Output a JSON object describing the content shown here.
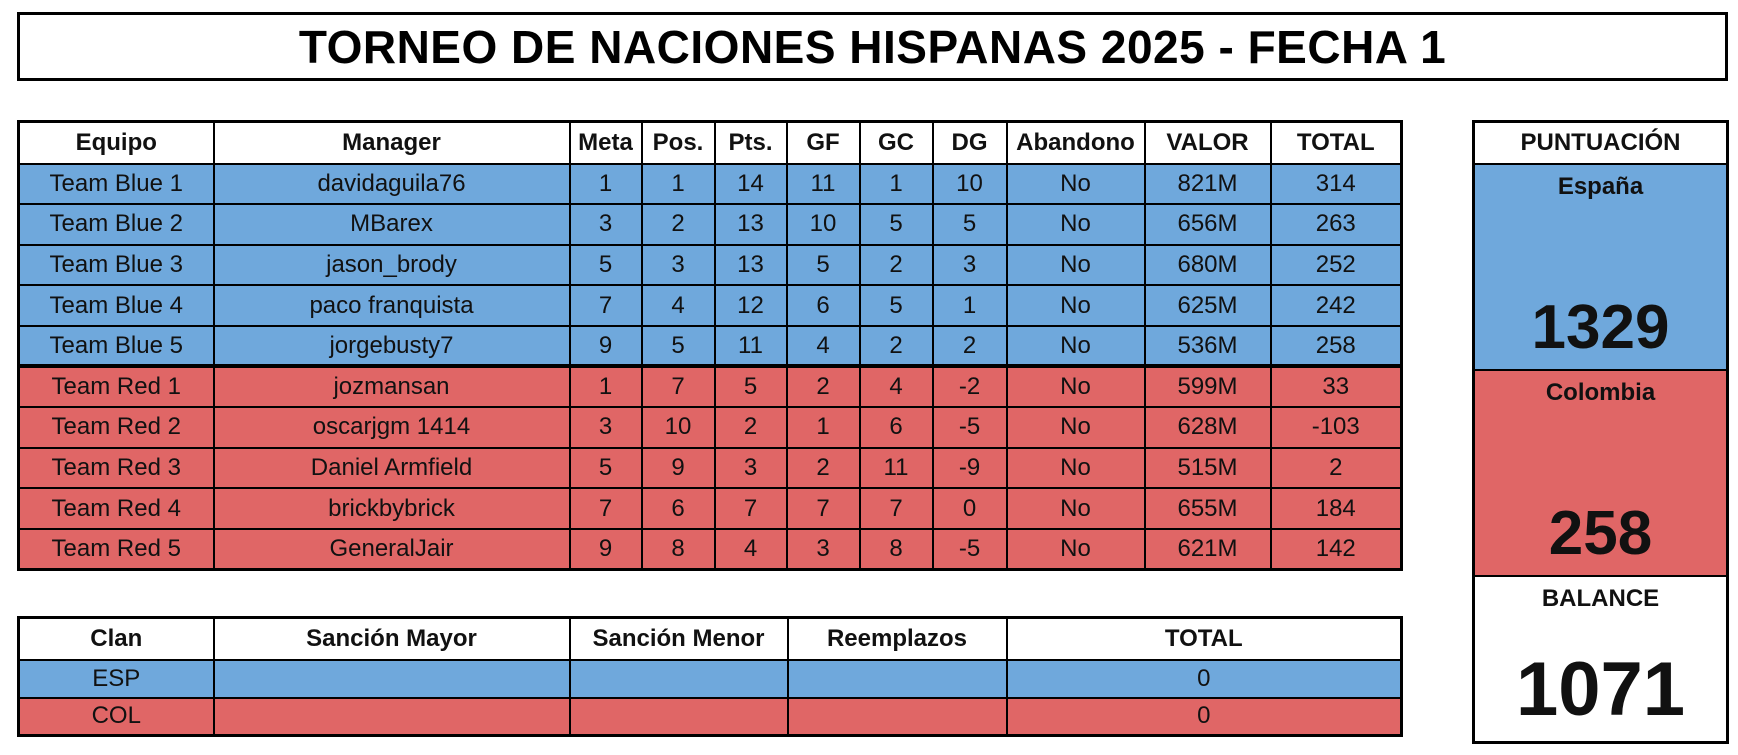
{
  "title": "TORNEO DE NACIONES HISPANAS 2025 - FECHA 1",
  "main_table": {
    "headers": [
      "Equipo",
      "Manager",
      "Meta",
      "Pos.",
      "Pts.",
      "GF",
      "GC",
      "DG",
      "Abandono",
      "VALOR",
      "TOTAL"
    ],
    "rows": [
      [
        "Team Blue 1",
        "davidaguila76",
        "1",
        "1",
        "14",
        "11",
        "1",
        "10",
        "No",
        "821M",
        "314"
      ],
      [
        "Team Blue 2",
        "MBarex",
        "3",
        "2",
        "13",
        "10",
        "5",
        "5",
        "No",
        "656M",
        "263"
      ],
      [
        "Team Blue 3",
        "jason_brody",
        "5",
        "3",
        "13",
        "5",
        "2",
        "3",
        "No",
        "680M",
        "252"
      ],
      [
        "Team Blue 4",
        "paco franquista",
        "7",
        "4",
        "12",
        "6",
        "5",
        "1",
        "No",
        "625M",
        "242"
      ],
      [
        "Team Blue 5",
        "jorgebusty7",
        "9",
        "5",
        "11",
        "4",
        "2",
        "2",
        "No",
        "536M",
        "258"
      ],
      [
        "Team Red 1",
        "jozmansan",
        "1",
        "7",
        "5",
        "2",
        "4",
        "-2",
        "No",
        "599M",
        "33"
      ],
      [
        "Team Red 2",
        "oscarjgm 1414",
        "3",
        "10",
        "2",
        "1",
        "6",
        "-5",
        "No",
        "628M",
        "-103"
      ],
      [
        "Team Red 3",
        "Daniel Armfield",
        "5",
        "9",
        "3",
        "2",
        "11",
        "-9",
        "No",
        "515M",
        "2"
      ],
      [
        "Team Red 4",
        "brickbybrick",
        "7",
        "6",
        "7",
        "7",
        "7",
        "0",
        "No",
        "655M",
        "184"
      ],
      [
        "Team Red 5",
        "GeneralJair",
        "9",
        "8",
        "4",
        "3",
        "8",
        "-5",
        "No",
        "621M",
        "142"
      ]
    ]
  },
  "penalties": {
    "headers": [
      "Clan",
      "Sanción Mayor",
      "Sanción Menor",
      "Reemplazos",
      "TOTAL"
    ],
    "rows": [
      [
        "ESP",
        "",
        "",
        "",
        "0"
      ],
      [
        "COL",
        "",
        "",
        "",
        "0"
      ]
    ]
  },
  "score": {
    "header": "PUNTUACIÓN",
    "team1_name": "España",
    "team1_value": "1329",
    "team2_name": "Colombia",
    "team2_value": "258",
    "balance_label": "BALANCE",
    "balance_value": "1071"
  },
  "colors": {
    "blue": "#6fa8dc",
    "red": "#e06666"
  }
}
